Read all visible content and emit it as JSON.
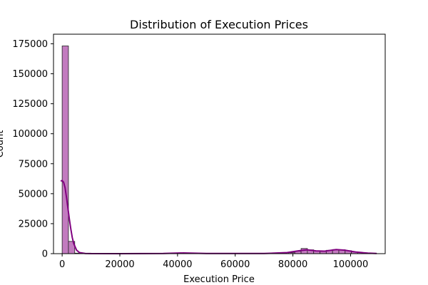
{
  "chart_data": {
    "type": "bar",
    "title": "Distribution of Execution Prices",
    "xlabel": "Execution Price",
    "ylabel": "Count",
    "xlim": [
      -3000,
      112000
    ],
    "ylim": [
      0,
      183000
    ],
    "xticks": [
      0,
      20000,
      40000,
      60000,
      80000,
      100000
    ],
    "yticks": [
      0,
      25000,
      50000,
      75000,
      100000,
      125000,
      150000,
      175000
    ],
    "bin_width": 2180,
    "bins": [
      {
        "x0": 0,
        "count": 173200
      },
      {
        "x0": 2180,
        "count": 10200
      },
      {
        "x0": 4360,
        "count": 400
      },
      {
        "x0": 6540,
        "count": 100
      },
      {
        "x0": 39240,
        "count": 300
      },
      {
        "x0": 41420,
        "count": 500
      },
      {
        "x0": 43600,
        "count": 300
      },
      {
        "x0": 78480,
        "count": 800
      },
      {
        "x0": 80660,
        "count": 2000
      },
      {
        "x0": 82840,
        "count": 4300
      },
      {
        "x0": 85020,
        "count": 3200
      },
      {
        "x0": 87200,
        "count": 2300
      },
      {
        "x0": 89380,
        "count": 1800
      },
      {
        "x0": 91560,
        "count": 2800
      },
      {
        "x0": 93740,
        "count": 3400
      },
      {
        "x0": 95920,
        "count": 3300
      },
      {
        "x0": 98100,
        "count": 2500
      },
      {
        "x0": 100280,
        "count": 1400
      },
      {
        "x0": 102460,
        "count": 900
      },
      {
        "x0": 104640,
        "count": 500
      },
      {
        "x0": 106820,
        "count": 300
      }
    ],
    "kde": {
      "x": [
        -500,
        0,
        500,
        1000,
        1500,
        2000,
        2500,
        3000,
        3500,
        4000,
        5000,
        6000,
        8000,
        10000,
        20000,
        35000,
        42000,
        50000,
        70000,
        78000,
        82000,
        85000,
        88000,
        91000,
        95000,
        98000,
        102000,
        106000,
        109000
      ],
      "y": [
        60500,
        61000,
        59500,
        55000,
        47000,
        38000,
        29000,
        20500,
        13500,
        8500,
        3000,
        900,
        150,
        50,
        0,
        100,
        600,
        150,
        100,
        900,
        2400,
        3200,
        2300,
        2100,
        3400,
        2900,
        1300,
        400,
        100
      ]
    },
    "colors": {
      "bar_fill": "#c27bbf",
      "bar_edge": "#222222",
      "kde_line": "#800080"
    },
    "grid": false,
    "legend": "none"
  }
}
